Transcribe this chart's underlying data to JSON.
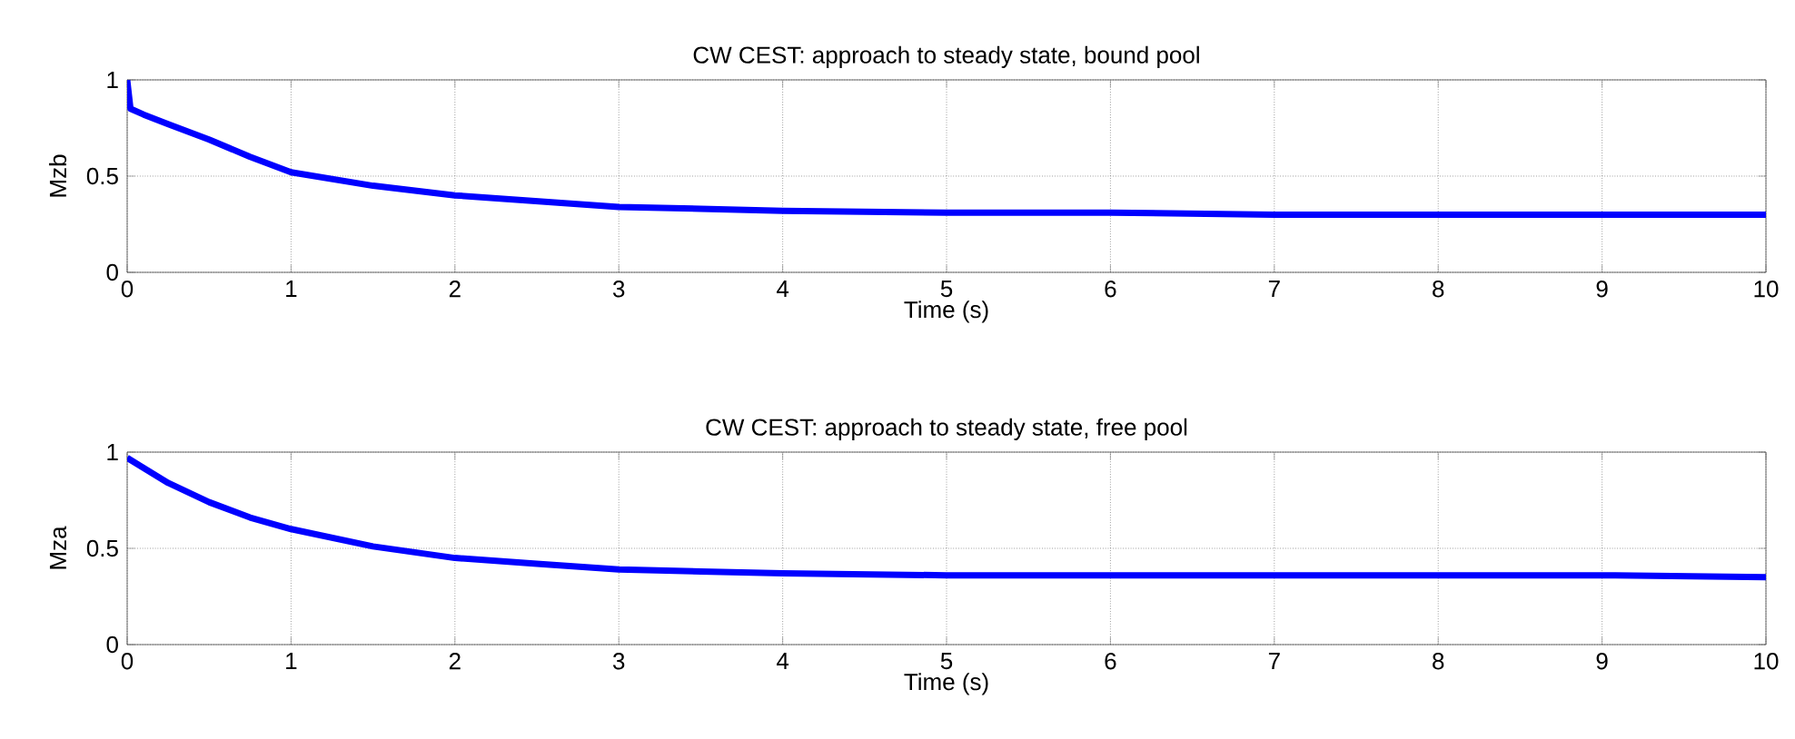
{
  "chart_data": [
    {
      "type": "line",
      "title": "CW CEST: approach to steady state, bound pool",
      "xlabel": "Time (s)",
      "ylabel": "Mzb",
      "x": [
        0,
        0.02,
        0.1,
        0.25,
        0.5,
        0.75,
        1,
        1.5,
        2,
        2.5,
        3,
        3.5,
        4,
        5,
        6,
        7,
        8,
        9,
        10
      ],
      "series": [
        {
          "color": "#0000ff",
          "values": [
            1,
            0.85,
            0.82,
            0.77,
            0.69,
            0.6,
            0.52,
            0.45,
            0.4,
            0.37,
            0.34,
            0.33,
            0.32,
            0.31,
            0.31,
            0.3,
            0.3,
            0.3,
            0.3
          ]
        }
      ],
      "xlim": [
        0,
        10
      ],
      "ylim": [
        0,
        1
      ],
      "xticks": [
        0,
        1,
        2,
        3,
        4,
        5,
        6,
        7,
        8,
        9,
        10
      ],
      "yticks": [
        0,
        0.5,
        1
      ],
      "grid": true
    },
    {
      "type": "line",
      "title": "CW CEST: approach to steady state, free pool",
      "xlabel": "Time (s)",
      "ylabel": "Mza",
      "x": [
        0,
        0.25,
        0.5,
        0.75,
        1,
        1.5,
        2,
        2.5,
        3,
        3.5,
        4,
        5,
        6,
        7,
        8,
        9,
        10
      ],
      "series": [
        {
          "color": "#0000ff",
          "values": [
            0.97,
            0.84,
            0.74,
            0.66,
            0.6,
            0.51,
            0.45,
            0.42,
            0.39,
            0.38,
            0.37,
            0.36,
            0.36,
            0.36,
            0.36,
            0.36,
            0.35
          ]
        }
      ],
      "xlim": [
        0,
        10
      ],
      "ylim": [
        0,
        1
      ],
      "xticks": [
        0,
        1,
        2,
        3,
        4,
        5,
        6,
        7,
        8,
        9,
        10
      ],
      "yticks": [
        0,
        0.5,
        1
      ],
      "grid": true
    }
  ]
}
